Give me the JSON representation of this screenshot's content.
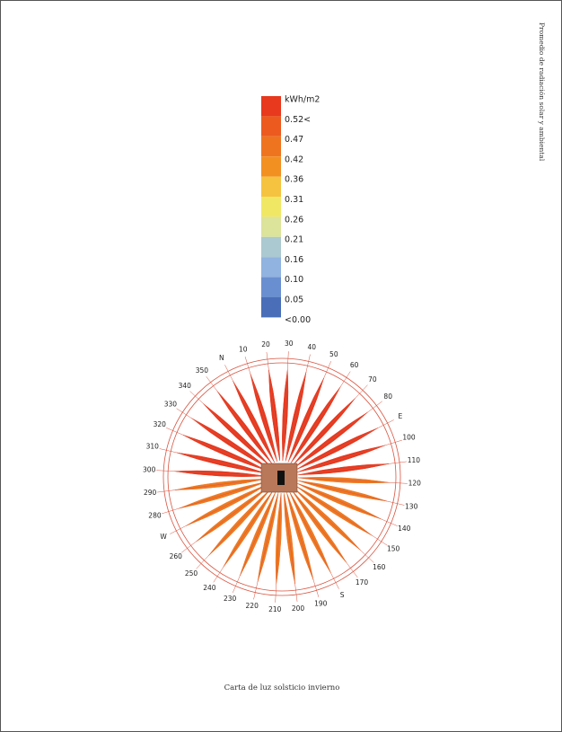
{
  "side_title": "Promedio de radiación solar y ambiental",
  "legend": {
    "labels": [
      "kWh/m2",
      "0.52<",
      "0.47",
      "0.42",
      "0.36",
      "0.31",
      "0.26",
      "0.21",
      "0.16",
      "0.10",
      "0.05",
      "<0.00"
    ]
  },
  "compass": {
    "labels": [
      "N",
      "10",
      "20",
      "30",
      "40",
      "50",
      "60",
      "70",
      "80",
      "E",
      "100",
      "110",
      "120",
      "130",
      "140",
      "150",
      "160",
      "170",
      "S",
      "190",
      "200",
      "210",
      "220",
      "230",
      "240",
      "250",
      "260",
      "W",
      "280",
      "290",
      "300",
      "310",
      "320",
      "330",
      "340",
      "350"
    ]
  },
  "caption": "Carta de luz solsticio invierno"
}
